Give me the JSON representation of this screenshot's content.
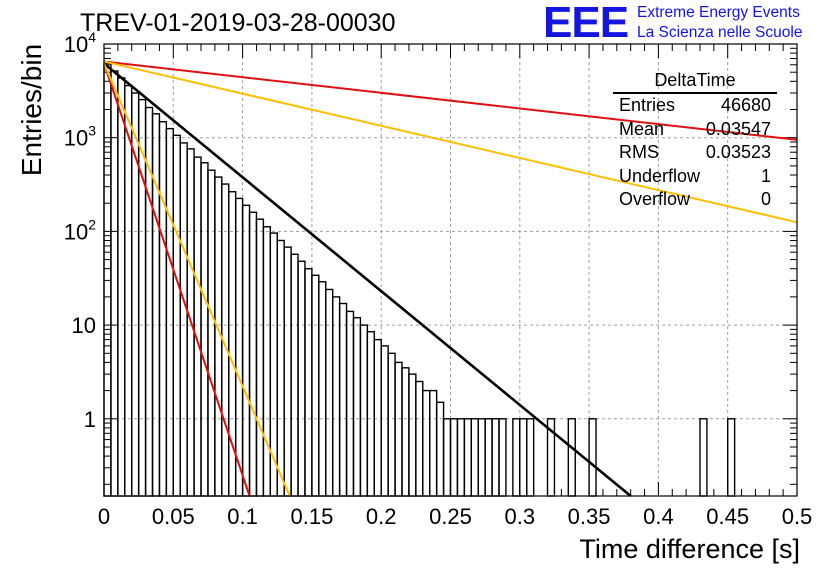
{
  "title": "TREV-01-2019-03-28-00030",
  "logo": {
    "mark": "EEE",
    "line1": "Extreme Energy Events",
    "line2": "La Scienza nelle Scuole"
  },
  "stats_box": {
    "name": "DeltaTime",
    "rows": [
      {
        "label": "Entries",
        "value": "46680"
      },
      {
        "label": "Mean",
        "value": "0.03547"
      },
      {
        "label": "RMS",
        "value": "0.03523"
      },
      {
        "label": "Underflow",
        "value": "1"
      },
      {
        "label": "Overflow",
        "value": "0"
      }
    ]
  },
  "chart_data": {
    "type": "bar",
    "title": "TREV-01-2019-03-28-00030",
    "xlabel": "Time difference [s]",
    "ylabel": "Entries/bin",
    "xlim": [
      0,
      0.5
    ],
    "ylim": [
      0.15,
      10000
    ],
    "y_scale": "log",
    "grid": true,
    "x_ticks": [
      "0",
      "0.05",
      "0.1",
      "0.15",
      "0.2",
      "0.25",
      "0.3",
      "0.35",
      "0.4",
      "0.45",
      "0.5"
    ],
    "y_ticks": [
      "1",
      "10",
      "10^2",
      "10^3",
      "10^4"
    ],
    "bin_width": 0.005,
    "histogram": [
      [
        0.0,
        6200
      ],
      [
        0.005,
        5150
      ],
      [
        0.01,
        4350
      ],
      [
        0.015,
        3600
      ],
      [
        0.02,
        3000
      ],
      [
        0.025,
        2550
      ],
      [
        0.03,
        2100
      ],
      [
        0.035,
        1800
      ],
      [
        0.04,
        1480
      ],
      [
        0.045,
        1250
      ],
      [
        0.05,
        1060
      ],
      [
        0.055,
        880
      ],
      [
        0.06,
        760
      ],
      [
        0.065,
        620
      ],
      [
        0.07,
        540
      ],
      [
        0.075,
        450
      ],
      [
        0.08,
        380
      ],
      [
        0.085,
        320
      ],
      [
        0.09,
        265
      ],
      [
        0.095,
        225
      ],
      [
        0.1,
        190
      ],
      [
        0.105,
        160
      ],
      [
        0.11,
        135
      ],
      [
        0.115,
        112
      ],
      [
        0.12,
        96
      ],
      [
        0.125,
        80
      ],
      [
        0.13,
        68
      ],
      [
        0.135,
        57
      ],
      [
        0.14,
        48
      ],
      [
        0.145,
        40
      ],
      [
        0.15,
        34
      ],
      [
        0.155,
        29
      ],
      [
        0.16,
        24
      ],
      [
        0.165,
        20
      ],
      [
        0.17,
        17
      ],
      [
        0.175,
        14
      ],
      [
        0.18,
        12
      ],
      [
        0.185,
        10
      ],
      [
        0.19,
        8.5
      ],
      [
        0.195,
        7
      ],
      [
        0.2,
        6
      ],
      [
        0.205,
        5
      ],
      [
        0.21,
        4
      ],
      [
        0.215,
        3.5
      ],
      [
        0.22,
        3
      ],
      [
        0.225,
        2.5
      ],
      [
        0.23,
        2
      ],
      [
        0.235,
        2
      ],
      [
        0.24,
        1.5
      ],
      [
        0.245,
        1
      ],
      [
        0.25,
        1
      ],
      [
        0.255,
        1
      ],
      [
        0.26,
        1
      ],
      [
        0.265,
        1
      ],
      [
        0.27,
        1
      ],
      [
        0.275,
        1
      ],
      [
        0.28,
        1
      ],
      [
        0.285,
        1
      ],
      [
        0.29,
        0
      ],
      [
        0.295,
        1
      ],
      [
        0.3,
        1
      ],
      [
        0.305,
        1
      ],
      [
        0.31,
        0
      ],
      [
        0.315,
        0
      ],
      [
        0.32,
        1
      ],
      [
        0.325,
        0
      ],
      [
        0.33,
        0
      ],
      [
        0.335,
        1
      ],
      [
        0.34,
        0
      ],
      [
        0.345,
        0
      ],
      [
        0.35,
        1
      ],
      [
        0.355,
        0
      ],
      [
        0.36,
        0
      ],
      [
        0.365,
        0
      ],
      [
        0.37,
        0
      ],
      [
        0.375,
        0
      ],
      [
        0.38,
        0
      ],
      [
        0.385,
        0
      ],
      [
        0.39,
        0
      ],
      [
        0.395,
        0
      ],
      [
        0.4,
        0
      ],
      [
        0.405,
        0
      ],
      [
        0.41,
        0
      ],
      [
        0.415,
        0
      ],
      [
        0.42,
        0
      ],
      [
        0.425,
        0
      ],
      [
        0.43,
        1
      ],
      [
        0.435,
        0
      ],
      [
        0.44,
        0
      ],
      [
        0.445,
        0
      ],
      [
        0.45,
        1
      ],
      [
        0.455,
        0
      ],
      [
        0.46,
        0
      ],
      [
        0.465,
        0
      ],
      [
        0.47,
        0
      ],
      [
        0.475,
        0
      ],
      [
        0.48,
        0
      ],
      [
        0.485,
        0
      ],
      [
        0.49,
        0
      ],
      [
        0.495,
        0
      ]
    ],
    "series": [
      {
        "label": "exponential fit",
        "color": "#000000",
        "x": [
          0,
          0.38
        ],
        "y": [
          6200,
          0.14
        ]
      },
      {
        "label": "steep red line",
        "color": "#e01010",
        "x": [
          0,
          0.105
        ],
        "y": [
          6200,
          0.15
        ]
      },
      {
        "label": "steep orange line",
        "color": "#ffbf00",
        "x": [
          0,
          0.134
        ],
        "y": [
          6200,
          0.15
        ]
      },
      {
        "label": "shallow red line",
        "color": "#e01010",
        "x": [
          0,
          0.5
        ],
        "y": [
          6500,
          950
        ]
      },
      {
        "label": "shallow orange line",
        "color": "#ffbf00",
        "x": [
          0,
          0.5
        ],
        "y": [
          6500,
          125
        ]
      }
    ]
  },
  "colors": {
    "histogram": "#000000",
    "grid": "#a0a0a0",
    "logo": "#1515e0"
  }
}
